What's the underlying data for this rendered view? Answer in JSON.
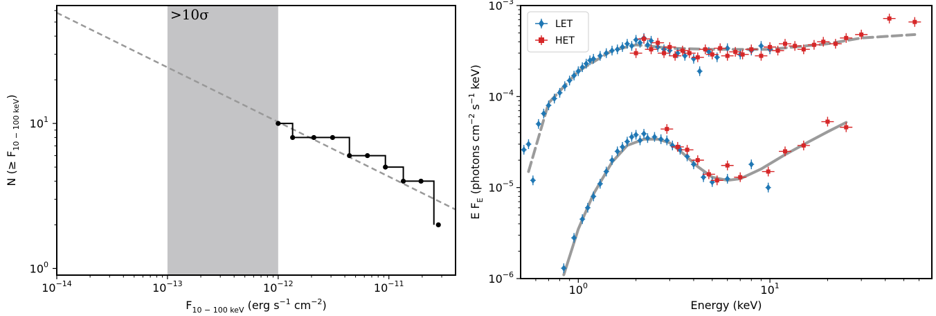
{
  "chart_data": [
    {
      "type": "line",
      "panel": "left",
      "xlabel": {
        "main": "F",
        "sub": "10 − 100 keV",
        "unit_pre": " (erg s",
        "unit_exp1": "−1",
        "unit_mid": " cm",
        "unit_exp2": "−2",
        "unit_post": ")"
      },
      "ylabel": {
        "main": "N (≥ F",
        "sub": "10 − 100 keV",
        "post": ")"
      },
      "xscale": "log",
      "yscale": "log",
      "xlim": [
        1e-14,
        4e-11
      ],
      "ylim": [
        0.9,
        65
      ],
      "x_ticks": [
        {
          "value": 1e-14,
          "base": "10",
          "exp": "−14"
        },
        {
          "value": 1e-13,
          "base": "10",
          "exp": "−13"
        },
        {
          "value": 1e-12,
          "base": "10",
          "exp": "−12"
        },
        {
          "value": 1e-11,
          "base": "10",
          "exp": "−11"
        }
      ],
      "y_ticks": [
        {
          "value": 1,
          "base": "10",
          "exp": "0"
        },
        {
          "value": 10,
          "base": "10",
          "exp": "1"
        }
      ],
      "shaded_region": {
        "x": [
          1e-13,
          1e-12
        ],
        "color": "#c4c4c6",
        "label": ">10σ"
      },
      "series": [
        {
          "type": "step",
          "color": "#000000",
          "x": [
            1e-12,
            1.35e-12,
            2.1e-12,
            3.1e-12,
            4.4e-12,
            6.4e-12,
            9.3e-12,
            1.35e-11,
            1.95e-11,
            2.8e-11
          ],
          "y": [
            10,
            8,
            8,
            8,
            6,
            6,
            5,
            4,
            4,
            2
          ],
          "step_end_x": 2.55e-11
        },
        {
          "type": "line",
          "style": "dashed",
          "color": "#999999",
          "x": [
            1e-14,
            4e-11
          ],
          "y": [
            58,
            2.55
          ]
        }
      ]
    },
    {
      "type": "scatter",
      "panel": "right",
      "xlabel": "Energy (keV)",
      "ylabel": {
        "pre": "E F",
        "sub": "E",
        "mid": " (photons cm",
        "exp1": "−2",
        "mid2": " s",
        "exp2": "−1",
        "post": " keV)"
      },
      "xscale": "log",
      "yscale": "log",
      "xlim": [
        0.5,
        70
      ],
      "ylim": [
        1e-06,
        0.001
      ],
      "x_ticks": [
        {
          "value": 1,
          "base": "10",
          "exp": "0"
        },
        {
          "value": 10,
          "base": "10",
          "exp": "1"
        }
      ],
      "y_ticks": [
        {
          "value": 1e-06,
          "base": "10",
          "exp": "−6"
        },
        {
          "value": 1e-05,
          "base": "10",
          "exp": "−5"
        },
        {
          "value": 0.0001,
          "base": "10",
          "exp": "−4"
        },
        {
          "value": 0.001,
          "base": "10",
          "exp": "−3"
        }
      ],
      "legend": {
        "position": "top-left"
      },
      "series": [
        {
          "name": "LET",
          "marker": "diamond",
          "color": "#1f77b4",
          "points": [
            [
              0.52,
              2.6e-05
            ],
            [
              0.55,
              3e-05
            ],
            [
              0.58,
              1.2e-05
            ],
            [
              0.62,
              5e-05
            ],
            [
              0.66,
              6.5e-05
            ],
            [
              0.7,
              8e-05
            ],
            [
              0.75,
              9.5e-05
            ],
            [
              0.8,
              0.00011
            ],
            [
              0.85,
              0.00013
            ],
            [
              0.9,
              0.00015
            ],
            [
              0.95,
              0.00017
            ],
            [
              1.0,
              0.00019
            ],
            [
              1.05,
              0.00021
            ],
            [
              1.1,
              0.00023
            ],
            [
              1.15,
              0.00025
            ],
            [
              1.2,
              0.00026
            ],
            [
              1.3,
              0.00028
            ],
            [
              1.4,
              0.0003
            ],
            [
              1.5,
              0.00032
            ],
            [
              1.6,
              0.00033
            ],
            [
              1.7,
              0.00035
            ],
            [
              1.8,
              0.00038
            ],
            [
              1.9,
              0.00036
            ],
            [
              2.0,
              0.00042
            ],
            [
              2.1,
              0.00039
            ],
            [
              2.2,
              0.00044
            ],
            [
              2.3,
              0.00037
            ],
            [
              2.4,
              0.00041
            ],
            [
              2.6,
              0.00035
            ],
            [
              2.8,
              0.00033
            ],
            [
              3.0,
              0.00032
            ],
            [
              3.3,
              0.0003
            ],
            [
              3.6,
              0.00028
            ],
            [
              4.0,
              0.00026
            ],
            [
              4.3,
              0.00019
            ],
            [
              4.8,
              0.00031
            ],
            [
              5.3,
              0.00027
            ],
            [
              6.0,
              0.00034
            ],
            [
              7.0,
              0.00029
            ],
            [
              8.0,
              0.00032
            ],
            [
              9.0,
              0.00036
            ],
            [
              10.0,
              0.00033
            ],
            [
              0.84,
              1.3e-06
            ],
            [
              0.95,
              2.8e-06
            ],
            [
              1.05,
              4.5e-06
            ],
            [
              1.12,
              6e-06
            ],
            [
              1.2,
              8e-06
            ],
            [
              1.3,
              1.1e-05
            ],
            [
              1.4,
              1.5e-05
            ],
            [
              1.5,
              2e-05
            ],
            [
              1.6,
              2.5e-05
            ],
            [
              1.7,
              2.8e-05
            ],
            [
              1.8,
              3.2e-05
            ],
            [
              1.9,
              3.6e-05
            ],
            [
              2.0,
              3.8e-05
            ],
            [
              2.1,
              3.3e-05
            ],
            [
              2.2,
              3.9e-05
            ],
            [
              2.3,
              3.5e-05
            ],
            [
              2.5,
              3.6e-05
            ],
            [
              2.7,
              3.4e-05
            ],
            [
              2.9,
              3.3e-05
            ],
            [
              3.1,
              2.9e-05
            ],
            [
              3.4,
              2.6e-05
            ],
            [
              3.7,
              2.2e-05
            ],
            [
              4.0,
              1.8e-05
            ],
            [
              4.5,
              1.3e-05
            ],
            [
              5.0,
              1.15e-05
            ],
            [
              6.0,
              1.25e-05
            ],
            [
              8.0,
              1.8e-05
            ],
            [
              9.8,
              1e-05
            ]
          ]
        },
        {
          "name": "HET",
          "marker": "square",
          "color": "#d62728",
          "points": [
            [
              2.0,
              0.0003
            ],
            [
              2.2,
              0.00043
            ],
            [
              2.4,
              0.00033
            ],
            [
              2.6,
              0.00039
            ],
            [
              2.8,
              0.0003
            ],
            [
              3.0,
              0.00035
            ],
            [
              3.2,
              0.00028
            ],
            [
              3.5,
              0.00032
            ],
            [
              3.8,
              0.0003
            ],
            [
              4.2,
              0.00027
            ],
            [
              4.6,
              0.00033
            ],
            [
              5.0,
              0.00029
            ],
            [
              5.5,
              0.00034
            ],
            [
              6.0,
              0.00028
            ],
            [
              6.6,
              0.00031
            ],
            [
              7.2,
              0.00029
            ],
            [
              8.0,
              0.00033
            ],
            [
              9.0,
              0.00028
            ],
            [
              10.0,
              0.00035
            ],
            [
              11.0,
              0.00032
            ],
            [
              12.0,
              0.00038
            ],
            [
              13.5,
              0.00036
            ],
            [
              15.0,
              0.00033
            ],
            [
              17.0,
              0.00037
            ],
            [
              19.0,
              0.0004
            ],
            [
              22.0,
              0.00038
            ],
            [
              25.0,
              0.00044
            ],
            [
              30.0,
              0.00048
            ],
            [
              42.0,
              0.00072
            ],
            [
              57.0,
              0.00066
            ],
            [
              2.9,
              4.4e-05
            ],
            [
              3.3,
              2.8e-05
            ],
            [
              3.7,
              2.6e-05
            ],
            [
              4.2,
              2e-05
            ],
            [
              4.8,
              1.4e-05
            ],
            [
              5.3,
              1.2e-05
            ],
            [
              6.0,
              1.75e-05
            ],
            [
              7.0,
              1.3e-05
            ],
            [
              9.8,
              1.5e-05
            ],
            [
              12.0,
              2.5e-05
            ],
            [
              15.0,
              2.9e-05
            ],
            [
              20.0,
              5.3e-05
            ],
            [
              25.0,
              4.6e-05
            ]
          ]
        },
        {
          "name": "",
          "marker": "line",
          "style": "dashed",
          "color": "#9b9b9b",
          "points": [
            [
              0.55,
              1.5e-05
            ],
            [
              0.7,
              8.5e-05
            ],
            [
              1.0,
              0.00019
            ],
            [
              1.5,
              0.00032
            ],
            [
              2.0,
              0.00037
            ],
            [
              3.0,
              0.00034
            ],
            [
              5.0,
              0.00033
            ],
            [
              10.0,
              0.00033
            ],
            [
              20.0,
              0.00038
            ],
            [
              30.0,
              0.00044
            ],
            [
              57.0,
              0.00048
            ]
          ]
        },
        {
          "name": "",
          "marker": "line",
          "style": "solid",
          "color": "#9b9b9b",
          "points": [
            [
              0.84,
              1.1e-06
            ],
            [
              1.0,
              3.5e-06
            ],
            [
              1.2,
              8.5e-06
            ],
            [
              1.5,
              1.9e-05
            ],
            [
              1.8,
              2.9e-05
            ],
            [
              2.2,
              3.4e-05
            ],
            [
              2.6,
              3.4e-05
            ],
            [
              3.0,
              3.1e-05
            ],
            [
              3.5,
              2.4e-05
            ],
            [
              4.2,
              1.7e-05
            ],
            [
              5.0,
              1.3e-05
            ],
            [
              6.0,
              1.2e-05
            ],
            [
              7.0,
              1.25e-05
            ],
            [
              9.0,
              1.6e-05
            ],
            [
              12.0,
              2.3e-05
            ],
            [
              16.0,
              3.2e-05
            ],
            [
              20.0,
              4.1e-05
            ],
            [
              25.0,
              5.2e-05
            ]
          ]
        }
      ]
    }
  ]
}
